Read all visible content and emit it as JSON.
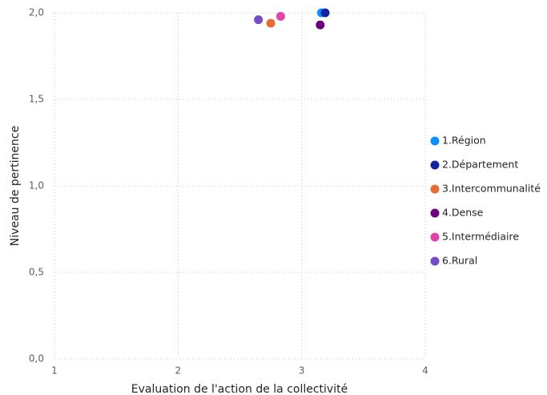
{
  "chart_data": {
    "type": "scatter",
    "xlabel": "Evaluation de l'action de la collectivité",
    "ylabel": "Niveau de pertinence",
    "xlim": [
      1,
      4
    ],
    "xticks": [
      1,
      2,
      3,
      4
    ],
    "ylim": [
      0,
      2
    ],
    "yticks": [
      {
        "value": 0,
        "label": "0,0"
      },
      {
        "value": 0.5,
        "label": "0,5"
      },
      {
        "value": 1,
        "label": "1,0"
      },
      {
        "value": 1.5,
        "label": "1,5"
      },
      {
        "value": 2,
        "label": "2,0"
      }
    ],
    "grid": true,
    "legend": "right",
    "series": [
      {
        "name": "1.Région",
        "color": "#118DFF",
        "x": [
          3.16
        ],
        "values": [
          2.0
        ]
      },
      {
        "name": "2.Département",
        "color": "#12239E",
        "x": [
          3.19
        ],
        "values": [
          2.0
        ]
      },
      {
        "name": "3.Intercommunalité",
        "color": "#E66C37",
        "x": [
          2.75
        ],
        "values": [
          1.94
        ]
      },
      {
        "name": "4.Dense",
        "color": "#6B007B",
        "x": [
          3.15
        ],
        "values": [
          1.93
        ]
      },
      {
        "name": "5.Intermédiaire",
        "color": "#E044A7",
        "x": [
          2.83
        ],
        "values": [
          1.98
        ]
      },
      {
        "name": "6.Rural",
        "color": "#744EC2",
        "x": [
          2.65
        ],
        "values": [
          1.96
        ]
      }
    ]
  }
}
